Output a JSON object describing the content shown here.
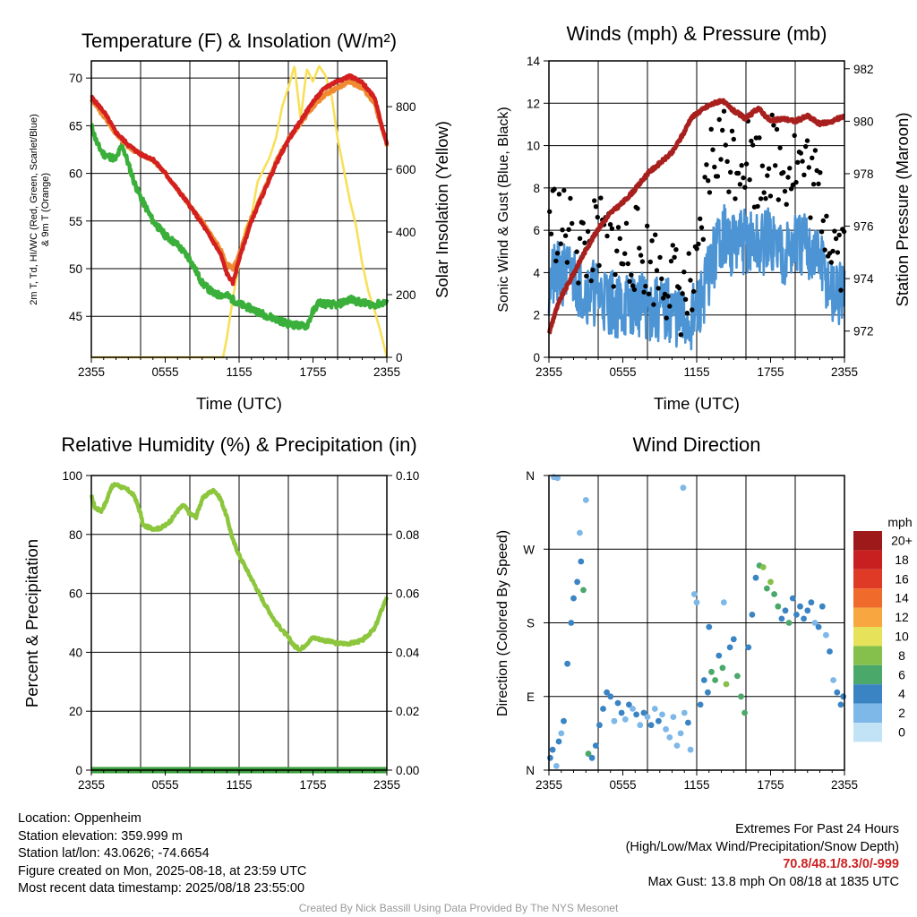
{
  "colors": {
    "red": "#cc2222",
    "green": "#3aaf3a",
    "orange": "#f08a30",
    "scarlet": "#d81e1e",
    "yellow": "#f8e05a",
    "maroon": "#a8201e",
    "wind_blue": "#4c94d4",
    "gust_black": "#000000",
    "rh_green": "#8cc63c",
    "precip_green": "#3a9c3a",
    "credit_gray": "#999999"
  },
  "x_tick_labels": [
    "2355",
    "0555",
    "1155",
    "1755",
    "2355"
  ],
  "chart_data": [
    {
      "type": "line",
      "title": "Temperature (F) & Insolation (W/m²)",
      "xlabel": "Time (UTC)",
      "ylabel": "2m T, Td, HI/WC (Red, Green, Scarlet/Blue) & 9m T (Orange)",
      "ylabel_lines": [
        "2m T, Td, HI/WC (Red, Green, Scarlet/Blue)",
        "& 9m T (Orange)"
      ],
      "y2label": "Solar Insolation (Yellow)",
      "xlim": [
        0,
        24
      ],
      "ylim": [
        40.7,
        71.8
      ],
      "y2lim": [
        0,
        946
      ],
      "y_ticks": [
        45,
        50,
        55,
        60,
        65,
        70
      ],
      "y2_ticks": [
        0,
        200,
        400,
        600,
        800
      ],
      "series": [
        {
          "name": "2m T",
          "axis": "left",
          "x": [
            0,
            1,
            2,
            3,
            4,
            5,
            6,
            7,
            8,
            9,
            10,
            10.5,
            11,
            11.5,
            12,
            13,
            14,
            15,
            16,
            17,
            18,
            19,
            20,
            21,
            22,
            23,
            24
          ],
          "values": [
            68,
            66.5,
            64.3,
            63,
            62,
            61.5,
            60,
            58.3,
            56.6,
            54.7,
            52.6,
            51.5,
            49.5,
            48.5,
            51,
            55,
            58,
            61,
            63.5,
            65.5,
            67.5,
            69,
            69.7,
            70.2,
            69.5,
            68,
            63
          ]
        },
        {
          "name": "Td",
          "axis": "left",
          "x": [
            0,
            0.5,
            1,
            2,
            2.5,
            3,
            3.5,
            4,
            5,
            6,
            7,
            8,
            9,
            10,
            11,
            12,
            13,
            14,
            15,
            16,
            17,
            17.5,
            18,
            18.5,
            19,
            20,
            21,
            22,
            23,
            24
          ],
          "values": [
            65,
            63,
            62,
            61.5,
            63,
            61,
            59,
            57.5,
            55,
            53.5,
            52.5,
            51,
            48.5,
            47.3,
            47.2,
            46.3,
            45.8,
            45.2,
            44.7,
            44.2,
            44,
            44,
            45.5,
            46.5,
            46.3,
            46.2,
            46.8,
            46.4,
            46.2,
            46.5
          ]
        },
        {
          "name": "9m T",
          "axis": "left",
          "x": [
            0,
            1,
            2,
            3,
            4,
            5,
            6,
            7,
            8,
            9,
            10,
            10.5,
            11,
            11.5,
            12,
            13,
            14,
            15,
            16,
            17,
            18,
            19,
            20,
            21,
            22,
            23,
            24
          ],
          "values": [
            67.8,
            66,
            64.2,
            62.8,
            62,
            61.4,
            60,
            58.4,
            56.6,
            54.9,
            53,
            52,
            50.5,
            50,
            51.5,
            55.3,
            58.2,
            61.2,
            63.6,
            65.3,
            67,
            68.3,
            69,
            69.6,
            69,
            67.3,
            63
          ]
        },
        {
          "name": "Solar Insolation",
          "axis": "right",
          "x": [
            0,
            10.7,
            11,
            11.5,
            12,
            12.5,
            13,
            13.5,
            14,
            14.5,
            15,
            15.5,
            16,
            16.5,
            17,
            17.5,
            18,
            18.5,
            19,
            19.5,
            20,
            20.5,
            21,
            21.5,
            22,
            22.5,
            23,
            23.5,
            24
          ],
          "values": [
            0,
            0,
            60,
            190,
            300,
            410,
            450,
            560,
            600,
            640,
            700,
            800,
            860,
            930,
            760,
            920,
            880,
            930,
            900,
            840,
            700,
            600,
            500,
            420,
            300,
            210,
            150,
            80,
            0
          ]
        }
      ]
    },
    {
      "type": "line",
      "title": "Winds (mph) & Pressure (mb)",
      "xlabel": "Time (UTC)",
      "ylabel": "Sonic Wind & Gust (Blue, Black)",
      "y2label": "Station Pressure (Maroon)",
      "xlim": [
        0,
        24
      ],
      "ylim": [
        0,
        14
      ],
      "y2lim": [
        971.0,
        982.3
      ],
      "y_ticks": [
        0,
        2,
        4,
        6,
        8,
        10,
        12,
        14
      ],
      "y2_ticks": [
        972,
        974,
        976,
        978,
        980,
        982
      ],
      "series": [
        {
          "name": "Sonic Wind",
          "axis": "left",
          "x": [
            0,
            1,
            2,
            3,
            4,
            5,
            6,
            7,
            8,
            9,
            10,
            11,
            12,
            13,
            14,
            15,
            16,
            17,
            18,
            19,
            20,
            21,
            22,
            23,
            24
          ],
          "values": [
            3.5,
            4,
            3.8,
            3.2,
            3,
            2.6,
            2.4,
            2.6,
            2.3,
            2.2,
            2.2,
            1.6,
            2.0,
            4.0,
            5.8,
            5.3,
            5.5,
            5.2,
            5.6,
            5.0,
            5.3,
            5.2,
            4.6,
            3.0,
            2.8
          ]
        },
        {
          "name": "Gust",
          "axis": "left",
          "x": [
            0,
            1,
            2,
            3,
            4,
            5,
            6,
            7,
            8,
            9,
            10,
            11,
            12,
            13,
            14,
            15,
            16,
            17,
            18,
            19,
            20,
            21,
            22,
            23,
            24
          ],
          "values": [
            6.8,
            6.2,
            5.4,
            5.0,
            5.6,
            5.4,
            4.8,
            5.2,
            4.6,
            4.2,
            3.6,
            2.9,
            3.2,
            9.0,
            10.2,
            9.4,
            9.8,
            8.8,
            9.6,
            9.0,
            9.4,
            8.8,
            7.5,
            5.8,
            5.0
          ]
        },
        {
          "name": "Station Pressure",
          "axis": "right",
          "x": [
            0,
            0.5,
            1,
            2,
            3,
            4,
            5,
            6,
            7,
            8,
            9,
            10,
            11,
            11.5,
            12,
            13,
            14,
            15,
            16,
            17,
            18,
            19,
            20,
            21,
            22,
            23,
            24
          ],
          "values": [
            971.9,
            972.7,
            973.3,
            974.2,
            975.1,
            975.9,
            976.5,
            976.9,
            977.4,
            978.0,
            978.4,
            978.8,
            979.6,
            980.1,
            980.3,
            980.6,
            980.8,
            980.4,
            980.1,
            980.5,
            980.0,
            980.1,
            980.0,
            980.2,
            979.9,
            980.0,
            980.2
          ]
        }
      ]
    },
    {
      "type": "line",
      "title": "Relative Humidity (%) & Precipitation (in)",
      "xlabel": "",
      "ylabel": "Percent & Precipitation",
      "xlim": [
        0,
        24
      ],
      "ylim": [
        0,
        100
      ],
      "y2lim": [
        0,
        0.1
      ],
      "y_ticks": [
        0,
        20,
        40,
        60,
        80,
        100
      ],
      "y2_ticks": [
        "0.00",
        "0.02",
        "0.04",
        "0.06",
        "0.08",
        "0.10"
      ],
      "series": [
        {
          "name": "Relative Humidity",
          "axis": "left",
          "x": [
            0,
            0.3,
            0.8,
            1.2,
            1.6,
            2.0,
            2.5,
            3,
            3.5,
            4,
            4.2,
            5,
            5.5,
            6,
            6.5,
            7,
            7.5,
            8,
            8.5,
            9,
            9.5,
            10,
            10.5,
            11,
            11.5,
            12,
            13,
            14,
            15,
            16,
            16.5,
            17,
            17.5,
            18,
            19,
            20,
            21,
            22,
            23,
            24
          ],
          "values": [
            93,
            89,
            88,
            91,
            96,
            97,
            96,
            95,
            93,
            87,
            83,
            82,
            82,
            83,
            85,
            88,
            90,
            87,
            86,
            92,
            94,
            95,
            92,
            86,
            78,
            73,
            65,
            57,
            50,
            45,
            42,
            41,
            43,
            45,
            44,
            43,
            43,
            44,
            48,
            59
          ]
        },
        {
          "name": "Precipitation",
          "axis": "right",
          "x": [
            0,
            24
          ],
          "values": [
            0,
            0
          ]
        }
      ]
    },
    {
      "type": "scatter",
      "title": "Wind Direction",
      "xlabel": "",
      "ylabel": "Direction (Colored By Speed)",
      "xlim": [
        0,
        24
      ],
      "ylim": [
        0,
        360
      ],
      "y_tick_labels": [
        "N",
        "E",
        "S",
        "W",
        "N"
      ],
      "y_tick_values": [
        0,
        90,
        180,
        270,
        360
      ],
      "colorbar": {
        "title": "mph",
        "labels": [
          "20+",
          "18",
          "16",
          "14",
          "12",
          "10",
          "8",
          "6",
          "4",
          "2",
          "0"
        ],
        "colors": [
          "#9e1a1a",
          "#c82020",
          "#de3a26",
          "#f06a2c",
          "#f8a640",
          "#e6e25a",
          "#86c04c",
          "#4aa86a",
          "#3a84c4",
          "#7db8e8",
          "#c2e2f6"
        ]
      },
      "points": [
        {
          "x": 0.1,
          "y": 15,
          "s": 4
        },
        {
          "x": 0.3,
          "y": 25,
          "s": 3
        },
        {
          "x": 0.6,
          "y": 5,
          "s": 2
        },
        {
          "x": 0.8,
          "y": 35,
          "s": 4
        },
        {
          "x": 1.0,
          "y": 45,
          "s": 2
        },
        {
          "x": 0.4,
          "y": 358,
          "s": 2
        },
        {
          "x": 0.7,
          "y": 357,
          "s": 1
        },
        {
          "x": 1.2,
          "y": 60,
          "s": 3
        },
        {
          "x": 1.5,
          "y": 130,
          "s": 4
        },
        {
          "x": 1.8,
          "y": 180,
          "s": 4
        },
        {
          "x": 2.0,
          "y": 210,
          "s": 3
        },
        {
          "x": 2.3,
          "y": 230,
          "s": 4
        },
        {
          "x": 2.6,
          "y": 255,
          "s": 3
        },
        {
          "x": 2.8,
          "y": 220,
          "s": 5
        },
        {
          "x": 2.5,
          "y": 290,
          "s": 1
        },
        {
          "x": 3.0,
          "y": 330,
          "s": 2
        },
        {
          "x": 3.2,
          "y": 20,
          "s": 5
        },
        {
          "x": 3.5,
          "y": 15,
          "s": 4
        },
        {
          "x": 3.8,
          "y": 30,
          "s": 3
        },
        {
          "x": 4.1,
          "y": 55,
          "s": 3
        },
        {
          "x": 4.4,
          "y": 75,
          "s": 4
        },
        {
          "x": 4.7,
          "y": 95,
          "s": 3
        },
        {
          "x": 5.0,
          "y": 90,
          "s": 4
        },
        {
          "x": 5.3,
          "y": 60,
          "s": 2
        },
        {
          "x": 5.6,
          "y": 82,
          "s": 3
        },
        {
          "x": 5.9,
          "y": 70,
          "s": 4
        },
        {
          "x": 6.2,
          "y": 62,
          "s": 2
        },
        {
          "x": 6.5,
          "y": 80,
          "s": 3
        },
        {
          "x": 6.8,
          "y": 75,
          "s": 2
        },
        {
          "x": 7.1,
          "y": 68,
          "s": 3
        },
        {
          "x": 7.4,
          "y": 55,
          "s": 2
        },
        {
          "x": 7.7,
          "y": 70,
          "s": 3
        },
        {
          "x": 8.0,
          "y": 65,
          "s": 2
        },
        {
          "x": 8.3,
          "y": 55,
          "s": 3
        },
        {
          "x": 8.6,
          "y": 75,
          "s": 2
        },
        {
          "x": 8.9,
          "y": 60,
          "s": 3
        },
        {
          "x": 9.2,
          "y": 68,
          "s": 2
        },
        {
          "x": 9.5,
          "y": 50,
          "s": 2
        },
        {
          "x": 9.8,
          "y": 40,
          "s": 1
        },
        {
          "x": 10.1,
          "y": 65,
          "s": 2
        },
        {
          "x": 10.4,
          "y": 30,
          "s": 1
        },
        {
          "x": 10.7,
          "y": 45,
          "s": 2
        },
        {
          "x": 11.0,
          "y": 70,
          "s": 2
        },
        {
          "x": 11.3,
          "y": 58,
          "s": 3
        },
        {
          "x": 11.5,
          "y": 25,
          "s": 2
        },
        {
          "x": 11.8,
          "y": 215,
          "s": 1
        },
        {
          "x": 12.0,
          "y": 205,
          "s": 2
        },
        {
          "x": 10.9,
          "y": 345,
          "s": 1
        },
        {
          "x": 12.3,
          "y": 80,
          "s": 3
        },
        {
          "x": 12.6,
          "y": 110,
          "s": 4
        },
        {
          "x": 12.9,
          "y": 95,
          "s": 3
        },
        {
          "x": 13.2,
          "y": 120,
          "s": 6
        },
        {
          "x": 13.5,
          "y": 110,
          "s": 5
        },
        {
          "x": 13.8,
          "y": 140,
          "s": 4
        },
        {
          "x": 14.1,
          "y": 125,
          "s": 6
        },
        {
          "x": 14.4,
          "y": 105,
          "s": 7
        },
        {
          "x": 14.7,
          "y": 150,
          "s": 4
        },
        {
          "x": 15.0,
          "y": 160,
          "s": 3
        },
        {
          "x": 15.3,
          "y": 115,
          "s": 6
        },
        {
          "x": 15.6,
          "y": 90,
          "s": 5
        },
        {
          "x": 15.9,
          "y": 70,
          "s": 6
        },
        {
          "x": 14.2,
          "y": 205,
          "s": 2
        },
        {
          "x": 13.0,
          "y": 175,
          "s": 3
        },
        {
          "x": 16.2,
          "y": 150,
          "s": 4
        },
        {
          "x": 16.5,
          "y": 190,
          "s": 3
        },
        {
          "x": 16.8,
          "y": 235,
          "s": 4
        },
        {
          "x": 17.1,
          "y": 250,
          "s": 6
        },
        {
          "x": 17.4,
          "y": 248,
          "s": 7
        },
        {
          "x": 17.7,
          "y": 222,
          "s": 6
        },
        {
          "x": 18.0,
          "y": 230,
          "s": 7
        },
        {
          "x": 18.3,
          "y": 215,
          "s": 5
        },
        {
          "x": 18.6,
          "y": 200,
          "s": 6
        },
        {
          "x": 18.9,
          "y": 185,
          "s": 4
        },
        {
          "x": 19.2,
          "y": 195,
          "s": 4
        },
        {
          "x": 19.5,
          "y": 180,
          "s": 5
        },
        {
          "x": 19.8,
          "y": 210,
          "s": 4
        },
        {
          "x": 20.1,
          "y": 190,
          "s": 3
        },
        {
          "x": 20.4,
          "y": 200,
          "s": 4
        },
        {
          "x": 20.7,
          "y": 185,
          "s": 4
        },
        {
          "x": 21.0,
          "y": 195,
          "s": 3
        },
        {
          "x": 21.3,
          "y": 205,
          "s": 4
        },
        {
          "x": 21.6,
          "y": 180,
          "s": 2
        },
        {
          "x": 21.9,
          "y": 175,
          "s": 3
        },
        {
          "x": 22.2,
          "y": 200,
          "s": 4
        },
        {
          "x": 22.5,
          "y": 165,
          "s": 2
        },
        {
          "x": 22.8,
          "y": 145,
          "s": 3
        },
        {
          "x": 23.1,
          "y": 110,
          "s": 2
        },
        {
          "x": 23.4,
          "y": 95,
          "s": 3
        },
        {
          "x": 23.7,
          "y": 80,
          "s": 4
        },
        {
          "x": 23.9,
          "y": 90,
          "s": 3
        }
      ]
    }
  ],
  "info": {
    "location": "Location: Oppenheim",
    "elevation": "Station elevation: 359.999 m",
    "latlon": "Station lat/lon: 43.0626; -74.6654",
    "created": "Figure created on Mon, 2025-08-18, at 23:59 UTC",
    "recent": "Most recent data timestamp: 2025/08/18 23:55:00"
  },
  "extremes": {
    "title": "Extremes For Past 24 Hours",
    "subtitle": "(High/Low/Max Wind/Precipitation/Snow Depth)",
    "values": "70.8/48.1/8.3/0/-999",
    "max_gust": "Max Gust: 13.8 mph On 08/18 at 1835 UTC"
  },
  "credit": "Created By Nick Bassill Using Data Provided By The NYS Mesonet"
}
